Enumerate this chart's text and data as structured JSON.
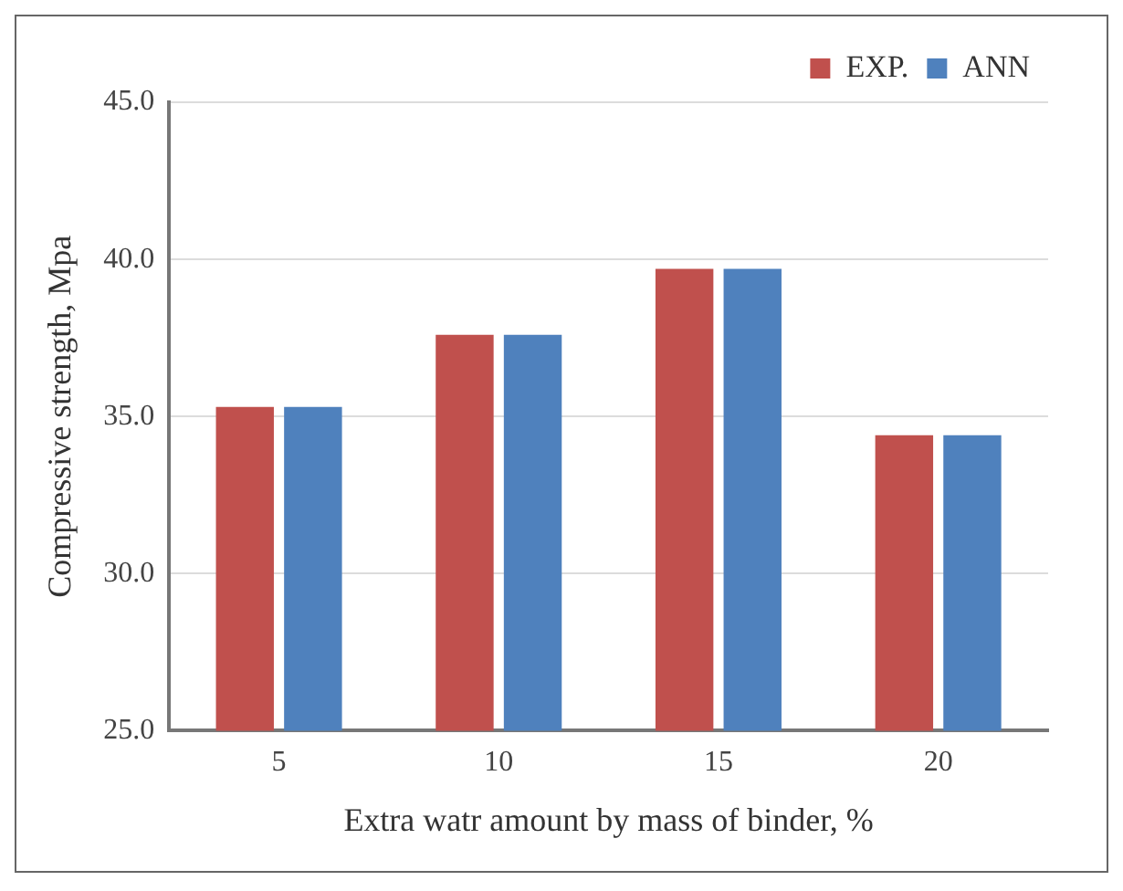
{
  "chart_data": {
    "type": "bar",
    "xlabel": "Extra watr amount by mass of binder, %",
    "ylabel": "Compressive strength, Mpa",
    "categories": [
      "5",
      "10",
      "15",
      "20"
    ],
    "series": [
      {
        "name": "EXP.",
        "color": "#c0504d",
        "values": [
          35.3,
          37.6,
          39.7,
          34.4
        ]
      },
      {
        "name": "ANN",
        "color": "#4f81bd",
        "values": [
          35.3,
          37.6,
          39.7,
          34.4
        ]
      }
    ],
    "ylim": [
      25,
      45
    ],
    "yticks": [
      {
        "value": 25,
        "label": "25.0"
      },
      {
        "value": 30,
        "label": "30.0"
      },
      {
        "value": 35,
        "label": "35.0"
      },
      {
        "value": 40,
        "label": "40.0"
      },
      {
        "value": 45,
        "label": "45.0"
      }
    ],
    "grid": "y",
    "legend": "top right"
  }
}
